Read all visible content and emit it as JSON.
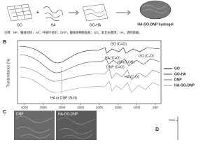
{
  "panel_a": {
    "labels": [
      "GO",
      "HA",
      "GO-HA",
      "HA-GO-DNP hydrogel"
    ],
    "operator": "+"
  },
  "notes": "注释：NP，髓核组织；AF，纤维环组织；DNP，髓核脱细胞基质；GO，氧化石墨烯；HA，透明质酸。",
  "panel_b": {
    "label": "B",
    "y_axis": "Transmittance (%)",
    "xticks": [
      4000,
      3500,
      3000,
      2500,
      2000,
      1500,
      1000,
      500
    ],
    "annotations": [
      "GO (C=O)",
      "DNP (C=O)",
      "HA (C=O)",
      "HA (C-OH)",
      "HA (C-O)",
      "GO (C-O)",
      "HA or DNP (N-H)"
    ],
    "legend": [
      {
        "name": "GO",
        "color": "#111111"
      },
      {
        "name": "GO-HA",
        "color": "#444444"
      },
      {
        "name": "DNP",
        "color": "#777777"
      },
      {
        "name": "HA-GO-DNP",
        "color": "#999999"
      }
    ]
  },
  "panel_c": {
    "label": "C",
    "images": [
      "DNP",
      "HA-GO-DNP"
    ]
  },
  "panel_d": {
    "label": "D",
    "tick": "7500"
  }
}
